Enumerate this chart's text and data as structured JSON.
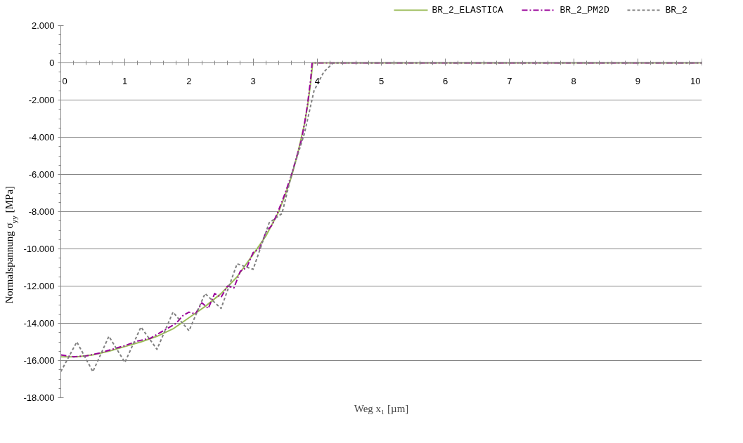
{
  "chart_data": {
    "type": "line",
    "xlabel": "Weg x₁ [µm]",
    "ylabel": "Normalspannung σ$_{yy}$  [MPa]",
    "xlim": [
      0,
      10
    ],
    "xticks": [
      0,
      1,
      2,
      3,
      4,
      5,
      6,
      7,
      8,
      9,
      10
    ],
    "ylim": [
      -18000,
      2000
    ],
    "yticks": [
      {
        "value": -18000,
        "label": "-18.000"
      },
      {
        "value": -16000,
        "label": "-16.000"
      },
      {
        "value": -14000,
        "label": "-14.000"
      },
      {
        "value": -12000,
        "label": "-12.000"
      },
      {
        "value": -10000,
        "label": "-10.000"
      },
      {
        "value": -8000,
        "label": "-8.000"
      },
      {
        "value": -6000,
        "label": "-6.000"
      },
      {
        "value": -4000,
        "label": "-4.000"
      },
      {
        "value": -2000,
        "label": "-2.000"
      },
      0,
      {
        "value": 2000,
        "label": "2.000"
      }
    ],
    "grid": "y",
    "legend": "top right",
    "series": [
      {
        "name": "BR_2_ELASTICA",
        "color": "#9bbb59",
        "line_style": "solid",
        "x": [
          0,
          0.25,
          0.5,
          0.75,
          1,
          1.25,
          1.5,
          1.75,
          2,
          2.25,
          2.5,
          2.75,
          3,
          3.2,
          3.4,
          3.5,
          3.6,
          3.7,
          3.8,
          3.85,
          3.9,
          3.93,
          5,
          10
        ],
        "values": [
          -15800,
          -15800,
          -15700,
          -15500,
          -15250,
          -15000,
          -14700,
          -14300,
          -13700,
          -13100,
          -12400,
          -11500,
          -10300,
          -9300,
          -8000,
          -7100,
          -6100,
          -4800,
          -3300,
          -2300,
          -1000,
          0,
          0,
          0
        ]
      },
      {
        "name": "BR_2_PM2D",
        "color": "#990099",
        "line_style": "dashdot",
        "x": [
          0,
          0.2,
          0.4,
          0.6,
          0.8,
          1,
          1.2,
          1.4,
          1.6,
          1.8,
          1.9,
          2,
          2.1,
          2.2,
          2.3,
          2.4,
          2.5,
          2.6,
          2.7,
          2.8,
          2.9,
          3,
          3.1,
          3.2,
          3.3,
          3.4,
          3.5,
          3.6,
          3.7,
          3.75,
          3.8,
          3.85,
          3.9,
          3.92,
          5,
          10
        ],
        "values": [
          -15700,
          -15800,
          -15750,
          -15600,
          -15400,
          -15200,
          -14950,
          -14800,
          -14400,
          -14000,
          -13600,
          -13400,
          -13500,
          -12900,
          -13200,
          -12400,
          -12600,
          -12000,
          -12100,
          -11200,
          -11000,
          -10200,
          -10000,
          -9100,
          -8700,
          -7900,
          -7000,
          -6000,
          -4800,
          -4200,
          -3300,
          -2200,
          -800,
          0,
          0,
          0
        ]
      },
      {
        "name": "BR_2",
        "color": "#808080",
        "line_style": "dashed",
        "x": [
          0,
          0.25,
          0.5,
          0.75,
          1,
          1.25,
          1.5,
          1.75,
          2,
          2.25,
          2.5,
          2.75,
          3,
          3.25,
          3.45,
          3.6,
          3.8,
          3.95,
          4.1,
          4.25,
          10
        ],
        "values": [
          -16600,
          -15000,
          -16600,
          -14700,
          -16100,
          -14200,
          -15400,
          -13400,
          -14400,
          -12400,
          -13200,
          -10800,
          -11100,
          -8600,
          -8100,
          -6000,
          -3800,
          -1500,
          -500,
          0,
          0
        ]
      }
    ]
  }
}
